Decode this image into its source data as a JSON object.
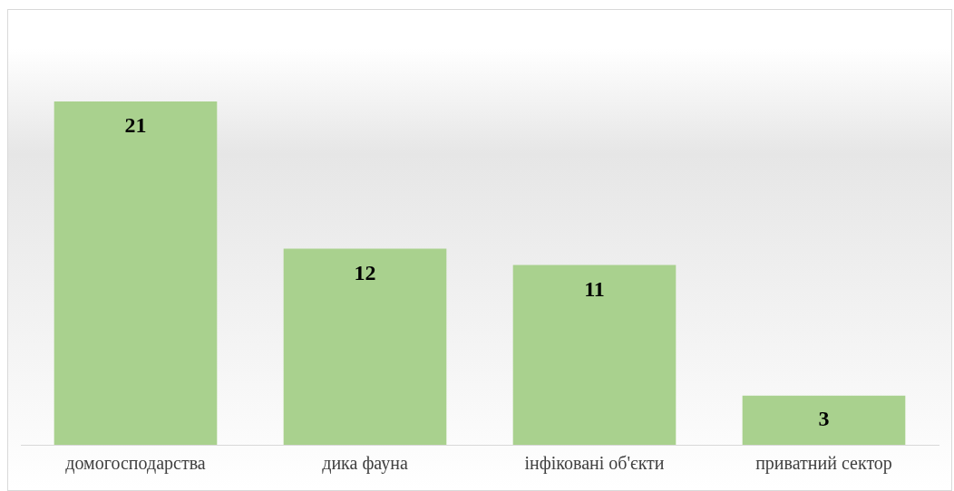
{
  "chart_data": {
    "type": "bar",
    "categories": [
      "домогосподарства",
      "дика фауна",
      "інфіковані об'єкти",
      "приватний сектор"
    ],
    "values": [
      21,
      12,
      11,
      3
    ],
    "color": "#a9d18e",
    "data_labels": true,
    "grid": false,
    "legend": false
  }
}
